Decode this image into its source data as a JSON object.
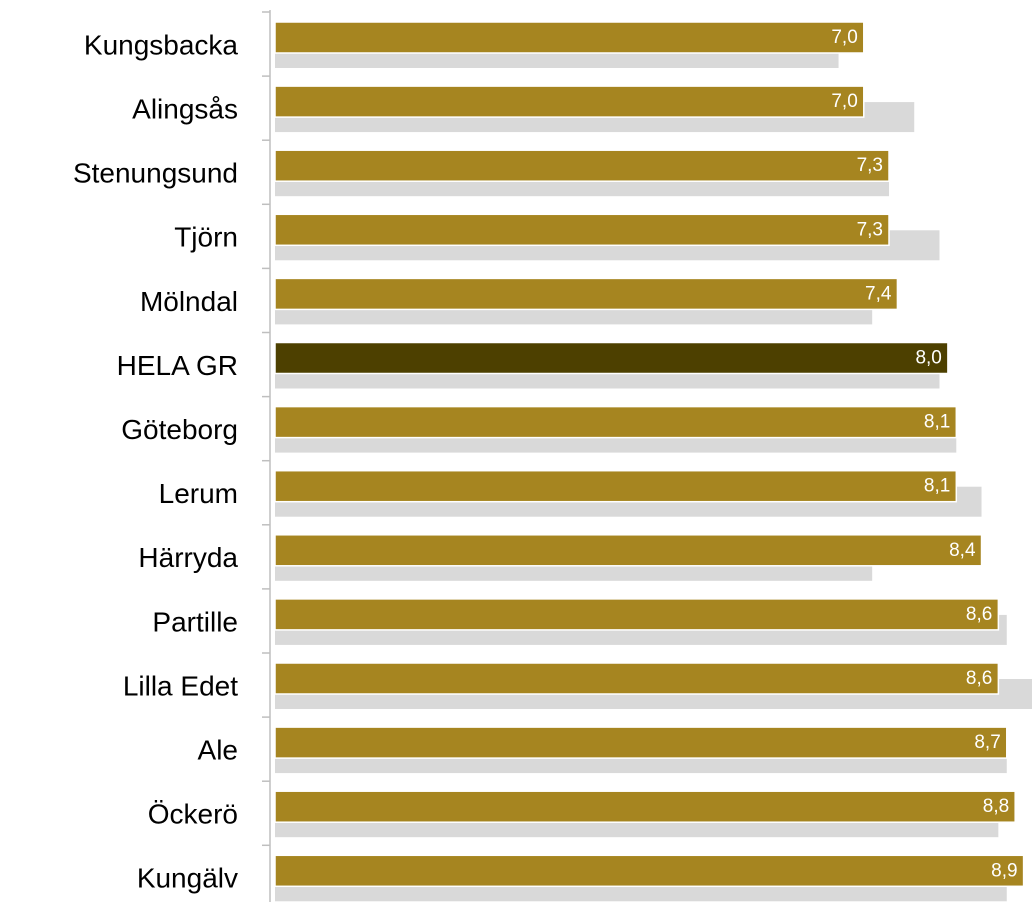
{
  "chart_data": {
    "type": "bar",
    "orientation": "horizontal",
    "categories": [
      "Kungsbacka",
      "Alingsås",
      "Stenungsund",
      "Tjörn",
      "Mölndal",
      "HELA GR",
      "Göteborg",
      "Lerum",
      "Härryda",
      "Partille",
      "Lilla Edet",
      "Ale",
      "Öckerö",
      "Kungälv"
    ],
    "series": [
      {
        "color": "#a68520",
        "colors": [
          "#a68520",
          "#a68520",
          "#a68520",
          "#a68520",
          "#a68520",
          "#4d4000",
          "#a68520",
          "#a68520",
          "#a68520",
          "#a68520",
          "#a68520",
          "#a68520",
          "#a68520",
          "#a68520"
        ],
        "values": [
          7.0,
          7.0,
          7.3,
          7.3,
          7.4,
          8.0,
          8.1,
          8.1,
          8.4,
          8.6,
          8.6,
          8.7,
          8.8,
          8.9
        ],
        "value_labels": [
          "7,0",
          "7,0",
          "7,3",
          "7,3",
          "7,4",
          "8,0",
          "8,1",
          "8,1",
          "8,4",
          "8,6",
          "8,6",
          "8,7",
          "8,8",
          "8,9"
        ]
      },
      {
        "color": "#d9d9d9",
        "values": [
          6.7,
          7.6,
          7.3,
          7.9,
          7.1,
          7.9,
          8.1,
          8.4,
          7.1,
          8.7,
          9.0,
          8.7,
          8.6,
          8.7
        ]
      }
    ],
    "xlim": [
      0,
      9
    ]
  }
}
